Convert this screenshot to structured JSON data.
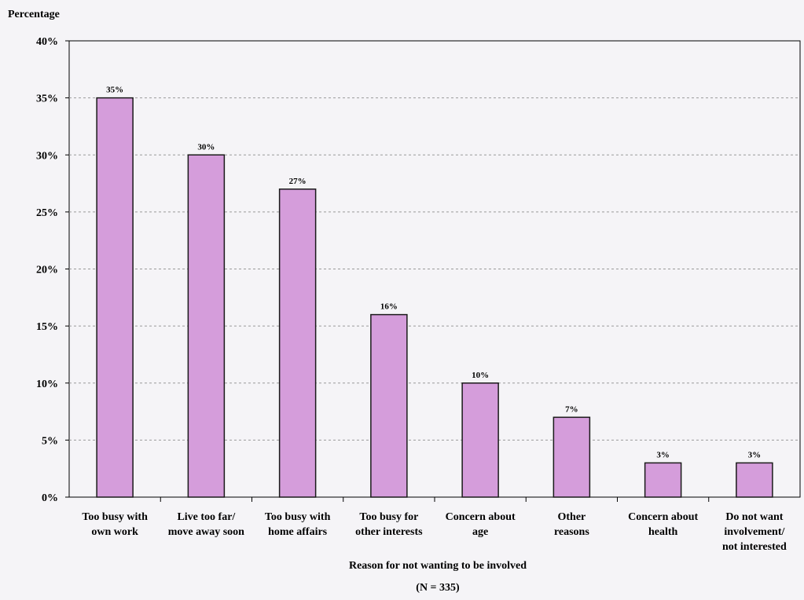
{
  "chart_data": {
    "type": "bar",
    "ylabel": "Percentage",
    "xlabel": "Reason for not wanting to be involved",
    "note": "(N = 335)",
    "ylim": [
      0,
      40
    ],
    "yticks": [
      "0%",
      "5%",
      "10%",
      "15%",
      "20%",
      "25%",
      "30%",
      "35%",
      "40%"
    ],
    "grid": true,
    "categories": [
      [
        "Too busy with",
        "own work"
      ],
      [
        "Live too far/",
        "move away soon"
      ],
      [
        "Too busy with",
        "home affairs"
      ],
      [
        "Too busy for",
        "other interests"
      ],
      [
        "Concern about",
        "age"
      ],
      [
        "Other",
        "reasons"
      ],
      [
        "Concern about",
        "health"
      ],
      [
        "Do not want",
        "involvement/",
        "not interested"
      ]
    ],
    "values": [
      35,
      30,
      27,
      16,
      10,
      7,
      3,
      3
    ],
    "data_labels": [
      "35%",
      "30%",
      "27%",
      "16%",
      "10%",
      "7%",
      "3%",
      "3%"
    ],
    "colors": {
      "bar": "#d59ddb",
      "bar_stroke": "#1a1a1a",
      "grid": "#9a9a9a",
      "axis": "#000000"
    }
  }
}
